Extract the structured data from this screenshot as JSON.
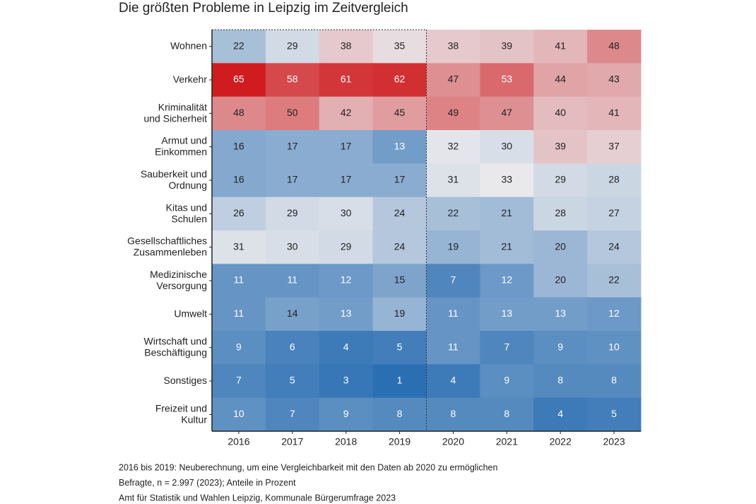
{
  "chart_data": {
    "type": "heatmap",
    "title": "Die größten Probleme in Leipzig im Zeitvergleich",
    "x": [
      "2016",
      "2017",
      "2018",
      "2019",
      "2020",
      "2021",
      "2022",
      "2023"
    ],
    "y": [
      [
        "Wohnen"
      ],
      [
        "Verkehr"
      ],
      [
        "Kriminalität",
        "und Sicherheit"
      ],
      [
        "Armut und",
        "Einkommen"
      ],
      [
        "Sauberkeit und",
        "Ordnung"
      ],
      [
        "Kitas und",
        "Schulen"
      ],
      [
        "Gesellschaftliches",
        "Zusammenleben"
      ],
      [
        "Medizinische",
        "Versorgung"
      ],
      [
        "Umwelt"
      ],
      [
        "Wirtschaft und",
        "Beschäftigung"
      ],
      [
        "Sonstiges"
      ],
      [
        "Freizeit und",
        "Kultur"
      ]
    ],
    "values": [
      [
        22,
        29,
        38,
        35,
        38,
        39,
        41,
        48
      ],
      [
        65,
        58,
        61,
        62,
        47,
        53,
        44,
        43
      ],
      [
        48,
        50,
        42,
        45,
        49,
        47,
        40,
        41
      ],
      [
        16,
        17,
        17,
        13,
        32,
        30,
        39,
        37
      ],
      [
        16,
        17,
        17,
        17,
        31,
        33,
        29,
        28
      ],
      [
        26,
        29,
        30,
        24,
        22,
        21,
        28,
        27
      ],
      [
        31,
        30,
        29,
        24,
        19,
        21,
        20,
        24
      ],
      [
        11,
        11,
        12,
        15,
        7,
        12,
        20,
        22
      ],
      [
        11,
        14,
        13,
        19,
        11,
        13,
        13,
        12
      ],
      [
        9,
        6,
        4,
        5,
        11,
        7,
        9,
        10
      ],
      [
        7,
        5,
        3,
        1,
        4,
        9,
        8,
        8
      ],
      [
        10,
        7,
        9,
        8,
        8,
        8,
        4,
        5
      ]
    ],
    "colors": [
      "#2b6fb3",
      "#e9e9ec",
      "#d01c1f"
    ],
    "notes": [
      "2016 bis 2019: Neuberechnung, um eine Vergleichbarkeit mit den Daten ab 2020 zu ermöglichen",
      "Befragte, n = 2.997 (2023); Anteile in Prozent",
      "Amt für Statistik und Wahlen Leipzig, Kommunale Bürgerumfrage 2023"
    ]
  }
}
